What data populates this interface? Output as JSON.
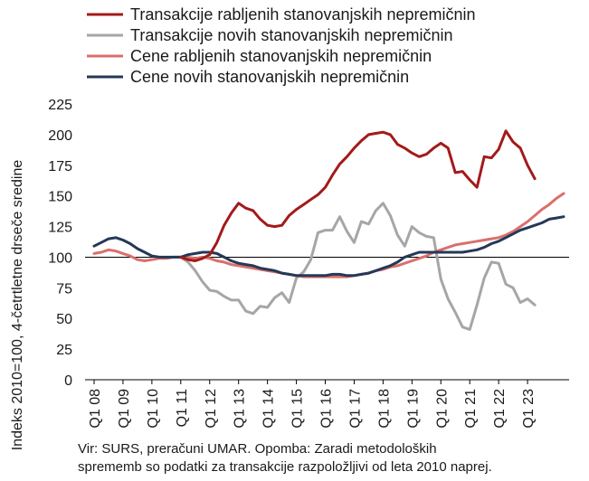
{
  "chart_data": {
    "type": "line",
    "title": "",
    "xlabel": "",
    "ylabel": "Indeks 2010=100, 4-četrtletne drseče sredine",
    "ylim": [
      0,
      225
    ],
    "yticks": [
      0,
      25,
      50,
      75,
      100,
      125,
      150,
      175,
      200,
      225
    ],
    "reference_line": 100,
    "grid": false,
    "legend_position": "top-left",
    "tick_labels": [
      "Q1 08",
      "Q1 09",
      "Q1 10",
      "Q1 11",
      "Q1 12",
      "Q1 13",
      "Q1 14",
      "Q1 15",
      "Q1 16",
      "Q1 17",
      "Q1 18",
      "Q1 19",
      "Q1 20",
      "Q1 21",
      "Q1 22",
      "Q1 23"
    ],
    "series": [
      {
        "name": "Transakcije rabljenih stanovanjskih nepremičnin",
        "color": "#a31a1a",
        "start_index": 12,
        "values": [
          100,
          98,
          97,
          99,
          102,
          112,
          126,
          136,
          144,
          140,
          138,
          131,
          126,
          125,
          126,
          134,
          139,
          143,
          147,
          151,
          157,
          167,
          176,
          182,
          189,
          195,
          200,
          201,
          202,
          200,
          192,
          189,
          185,
          182,
          184,
          189,
          193,
          189,
          169,
          170,
          163,
          157,
          182,
          181,
          188,
          203,
          194,
          189,
          175,
          164
        ]
      },
      {
        "name": "Transakcije novih stanovanjskih nepremičnin",
        "color": "#a6a6a6",
        "start_index": 12,
        "values": [
          100,
          96,
          89,
          80,
          73,
          72,
          68,
          65,
          65,
          56,
          54,
          60,
          59,
          67,
          71,
          63,
          83,
          88,
          98,
          120,
          122,
          122,
          133,
          121,
          112,
          129,
          127,
          138,
          144,
          134,
          118,
          109,
          125,
          120,
          117,
          116,
          82,
          66,
          55,
          43,
          41,
          61,
          83,
          96,
          95,
          78,
          75,
          63,
          66,
          61
        ]
      },
      {
        "name": "Cene rabljenih stanovanjskih nepremičnin",
        "color": "#d9706c",
        "start_index": 0,
        "values": [
          103,
          104,
          106,
          105,
          103,
          101,
          98,
          97,
          98,
          99,
          99,
          100,
          100,
          100,
          99,
          100,
          99,
          97,
          96,
          94,
          93,
          92,
          91,
          90,
          89,
          88,
          87,
          86,
          85,
          84,
          84,
          84,
          84,
          84,
          84,
          84,
          85,
          86,
          87,
          89,
          90,
          92,
          93,
          95,
          97,
          99,
          101,
          104,
          106,
          108,
          110,
          111,
          112,
          113,
          114,
          115,
          116,
          118,
          121,
          125,
          129,
          134,
          139,
          143,
          148,
          152
        ]
      },
      {
        "name": "Cene novih stanovanjskih nepremičnin",
        "color": "#253858",
        "start_index": 0,
        "values": [
          109,
          112,
          115,
          116,
          114,
          111,
          107,
          104,
          101,
          100,
          100,
          100,
          100,
          102,
          103,
          104,
          104,
          103,
          100,
          97,
          95,
          94,
          93,
          91,
          90,
          89,
          87,
          86,
          85,
          85,
          85,
          85,
          85,
          86,
          86,
          85,
          85,
          86,
          87,
          89,
          91,
          93,
          96,
          100,
          102,
          104,
          104,
          104,
          104,
          104,
          104,
          104,
          105,
          106,
          108,
          111,
          113,
          116,
          119,
          122,
          124,
          126,
          128,
          131,
          132,
          133
        ]
      }
    ]
  },
  "note": {
    "line1": "Vir: SURS, preračuni UMAR. Opomba: Zaradi metodoloških",
    "line2": "sprememb so podatki za transakcije razpoložljivi od leta 2010 naprej."
  }
}
